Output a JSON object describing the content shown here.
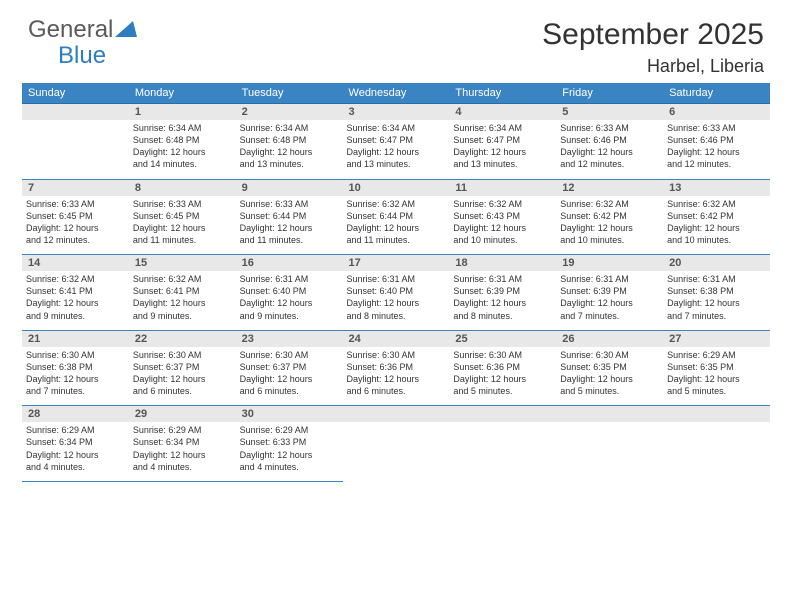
{
  "logo": {
    "general": "General",
    "blue": "Blue"
  },
  "title": "September 2025",
  "location": "Harbel, Liberia",
  "colors": {
    "header_bg": "#3a84c4",
    "header_text": "#ffffff",
    "daynum_bg": "#e8e8e8",
    "logo_blue": "#2d7dc0",
    "logo_gray": "#5a5a5a",
    "cell_border": "#3a84c4"
  },
  "day_headers": [
    "Sunday",
    "Monday",
    "Tuesday",
    "Wednesday",
    "Thursday",
    "Friday",
    "Saturday"
  ],
  "weeks": [
    [
      {
        "blank": true
      },
      {
        "num": "1",
        "sunrise": "Sunrise: 6:34 AM",
        "sunset": "Sunset: 6:48 PM",
        "daylight1": "Daylight: 12 hours",
        "daylight2": "and 14 minutes."
      },
      {
        "num": "2",
        "sunrise": "Sunrise: 6:34 AM",
        "sunset": "Sunset: 6:48 PM",
        "daylight1": "Daylight: 12 hours",
        "daylight2": "and 13 minutes."
      },
      {
        "num": "3",
        "sunrise": "Sunrise: 6:34 AM",
        "sunset": "Sunset: 6:47 PM",
        "daylight1": "Daylight: 12 hours",
        "daylight2": "and 13 minutes."
      },
      {
        "num": "4",
        "sunrise": "Sunrise: 6:34 AM",
        "sunset": "Sunset: 6:47 PM",
        "daylight1": "Daylight: 12 hours",
        "daylight2": "and 13 minutes."
      },
      {
        "num": "5",
        "sunrise": "Sunrise: 6:33 AM",
        "sunset": "Sunset: 6:46 PM",
        "daylight1": "Daylight: 12 hours",
        "daylight2": "and 12 minutes."
      },
      {
        "num": "6",
        "sunrise": "Sunrise: 6:33 AM",
        "sunset": "Sunset: 6:46 PM",
        "daylight1": "Daylight: 12 hours",
        "daylight2": "and 12 minutes."
      }
    ],
    [
      {
        "num": "7",
        "sunrise": "Sunrise: 6:33 AM",
        "sunset": "Sunset: 6:45 PM",
        "daylight1": "Daylight: 12 hours",
        "daylight2": "and 12 minutes."
      },
      {
        "num": "8",
        "sunrise": "Sunrise: 6:33 AM",
        "sunset": "Sunset: 6:45 PM",
        "daylight1": "Daylight: 12 hours",
        "daylight2": "and 11 minutes."
      },
      {
        "num": "9",
        "sunrise": "Sunrise: 6:33 AM",
        "sunset": "Sunset: 6:44 PM",
        "daylight1": "Daylight: 12 hours",
        "daylight2": "and 11 minutes."
      },
      {
        "num": "10",
        "sunrise": "Sunrise: 6:32 AM",
        "sunset": "Sunset: 6:44 PM",
        "daylight1": "Daylight: 12 hours",
        "daylight2": "and 11 minutes."
      },
      {
        "num": "11",
        "sunrise": "Sunrise: 6:32 AM",
        "sunset": "Sunset: 6:43 PM",
        "daylight1": "Daylight: 12 hours",
        "daylight2": "and 10 minutes."
      },
      {
        "num": "12",
        "sunrise": "Sunrise: 6:32 AM",
        "sunset": "Sunset: 6:42 PM",
        "daylight1": "Daylight: 12 hours",
        "daylight2": "and 10 minutes."
      },
      {
        "num": "13",
        "sunrise": "Sunrise: 6:32 AM",
        "sunset": "Sunset: 6:42 PM",
        "daylight1": "Daylight: 12 hours",
        "daylight2": "and 10 minutes."
      }
    ],
    [
      {
        "num": "14",
        "sunrise": "Sunrise: 6:32 AM",
        "sunset": "Sunset: 6:41 PM",
        "daylight1": "Daylight: 12 hours",
        "daylight2": "and 9 minutes."
      },
      {
        "num": "15",
        "sunrise": "Sunrise: 6:32 AM",
        "sunset": "Sunset: 6:41 PM",
        "daylight1": "Daylight: 12 hours",
        "daylight2": "and 9 minutes."
      },
      {
        "num": "16",
        "sunrise": "Sunrise: 6:31 AM",
        "sunset": "Sunset: 6:40 PM",
        "daylight1": "Daylight: 12 hours",
        "daylight2": "and 9 minutes."
      },
      {
        "num": "17",
        "sunrise": "Sunrise: 6:31 AM",
        "sunset": "Sunset: 6:40 PM",
        "daylight1": "Daylight: 12 hours",
        "daylight2": "and 8 minutes."
      },
      {
        "num": "18",
        "sunrise": "Sunrise: 6:31 AM",
        "sunset": "Sunset: 6:39 PM",
        "daylight1": "Daylight: 12 hours",
        "daylight2": "and 8 minutes."
      },
      {
        "num": "19",
        "sunrise": "Sunrise: 6:31 AM",
        "sunset": "Sunset: 6:39 PM",
        "daylight1": "Daylight: 12 hours",
        "daylight2": "and 7 minutes."
      },
      {
        "num": "20",
        "sunrise": "Sunrise: 6:31 AM",
        "sunset": "Sunset: 6:38 PM",
        "daylight1": "Daylight: 12 hours",
        "daylight2": "and 7 minutes."
      }
    ],
    [
      {
        "num": "21",
        "sunrise": "Sunrise: 6:30 AM",
        "sunset": "Sunset: 6:38 PM",
        "daylight1": "Daylight: 12 hours",
        "daylight2": "and 7 minutes."
      },
      {
        "num": "22",
        "sunrise": "Sunrise: 6:30 AM",
        "sunset": "Sunset: 6:37 PM",
        "daylight1": "Daylight: 12 hours",
        "daylight2": "and 6 minutes."
      },
      {
        "num": "23",
        "sunrise": "Sunrise: 6:30 AM",
        "sunset": "Sunset: 6:37 PM",
        "daylight1": "Daylight: 12 hours",
        "daylight2": "and 6 minutes."
      },
      {
        "num": "24",
        "sunrise": "Sunrise: 6:30 AM",
        "sunset": "Sunset: 6:36 PM",
        "daylight1": "Daylight: 12 hours",
        "daylight2": "and 6 minutes."
      },
      {
        "num": "25",
        "sunrise": "Sunrise: 6:30 AM",
        "sunset": "Sunset: 6:36 PM",
        "daylight1": "Daylight: 12 hours",
        "daylight2": "and 5 minutes."
      },
      {
        "num": "26",
        "sunrise": "Sunrise: 6:30 AM",
        "sunset": "Sunset: 6:35 PM",
        "daylight1": "Daylight: 12 hours",
        "daylight2": "and 5 minutes."
      },
      {
        "num": "27",
        "sunrise": "Sunrise: 6:29 AM",
        "sunset": "Sunset: 6:35 PM",
        "daylight1": "Daylight: 12 hours",
        "daylight2": "and 5 minutes."
      }
    ],
    [
      {
        "num": "28",
        "sunrise": "Sunrise: 6:29 AM",
        "sunset": "Sunset: 6:34 PM",
        "daylight1": "Daylight: 12 hours",
        "daylight2": "and 4 minutes."
      },
      {
        "num": "29",
        "sunrise": "Sunrise: 6:29 AM",
        "sunset": "Sunset: 6:34 PM",
        "daylight1": "Daylight: 12 hours",
        "daylight2": "and 4 minutes."
      },
      {
        "num": "30",
        "sunrise": "Sunrise: 6:29 AM",
        "sunset": "Sunset: 6:33 PM",
        "daylight1": "Daylight: 12 hours",
        "daylight2": "and 4 minutes."
      },
      {
        "blank": true
      },
      {
        "blank": true
      },
      {
        "blank": true
      },
      {
        "blank": true
      }
    ]
  ]
}
